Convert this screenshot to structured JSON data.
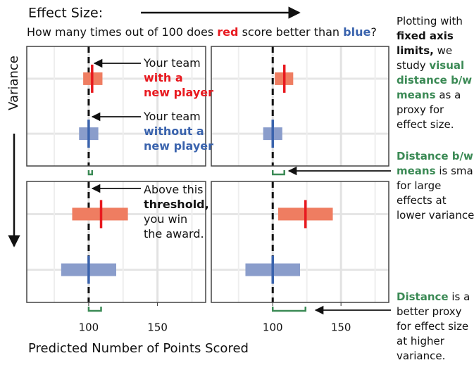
{
  "header": {
    "title": "Effect Size:",
    "question": [
      {
        "text": "How many times out of 100 does "
      },
      {
        "text": "red",
        "style": "red"
      },
      {
        "text": " score better than "
      },
      {
        "text": "blue",
        "style": "blue"
      },
      {
        "text": "?"
      }
    ]
  },
  "y_label": "Variance",
  "x_label": "Predicted Number of Points Scored",
  "panel_notes": [
    {
      "lines": [
        [
          {
            "text": "Your team"
          }
        ],
        [
          {
            "text": "with a",
            "style": "red"
          }
        ],
        [
          {
            "text": "new player",
            "style": "red"
          }
        ]
      ]
    },
    {
      "lines": [
        [
          {
            "text": "Your team"
          }
        ],
        [
          {
            "text": "without a",
            "style": "blue"
          }
        ],
        [
          {
            "text": "new player",
            "style": "blue"
          }
        ]
      ]
    },
    {
      "lines": [
        [
          {
            "text": "Above this"
          }
        ],
        [
          {
            "text": "threshold,",
            "style": "bold"
          }
        ],
        [
          {
            "text": "you win"
          }
        ],
        [
          {
            "text": "the award."
          }
        ]
      ]
    }
  ],
  "side_notes": [
    {
      "lines": [
        [
          {
            "text": "Plotting with"
          }
        ],
        [
          {
            "text": "fixed axis",
            "style": "bold"
          }
        ],
        [
          {
            "text": "limits,",
            "style": "bold"
          },
          {
            "text": " we"
          }
        ],
        [
          {
            "text": "study "
          },
          {
            "text": "visual",
            "style": "green"
          }
        ],
        [
          {
            "text": "distance b/w",
            "style": "green"
          }
        ],
        [
          {
            "text": "means",
            "style": "green"
          },
          {
            "text": " as a"
          }
        ],
        [
          {
            "text": "proxy for"
          }
        ],
        [
          {
            "text": "effect size."
          }
        ]
      ]
    },
    {
      "lines": [
        [
          {
            "text": "Distance b/w",
            "style": "green"
          }
        ],
        [
          {
            "text": "means",
            "style": "green"
          },
          {
            "text": " is small"
          }
        ],
        [
          {
            "text": "for large"
          }
        ],
        [
          {
            "text": "effects at"
          }
        ],
        [
          {
            "text": "lower variance."
          }
        ]
      ]
    },
    {
      "lines": [
        [
          {
            "text": "Distance",
            "style": "green"
          },
          {
            "text": " is a"
          }
        ],
        [
          {
            "text": "better proxy"
          }
        ],
        [
          {
            "text": "for effect size"
          }
        ],
        [
          {
            "text": "at higher"
          }
        ],
        [
          {
            "text": "variance."
          }
        ]
      ]
    }
  ],
  "chart_data": [
    {
      "type": "interval",
      "xlim": [
        55,
        185
      ],
      "xticks": [
        100,
        150
      ],
      "minor_grid": [
        75,
        125,
        175
      ],
      "show_tick_labels": false,
      "threshold": 100,
      "series": [
        {
          "color": "#ef7d61",
          "mean_color": "#e8191f",
          "low": 96,
          "high": 110,
          "mean": 102.5
        },
        {
          "color": "#8a9dcb",
          "mean_color": "#3a63ad",
          "low": 93,
          "high": 107,
          "mean": 100
        }
      ]
    },
    {
      "type": "interval",
      "xlim": [
        55,
        185
      ],
      "xticks": [
        100,
        150
      ],
      "minor_grid": [
        75,
        125,
        175
      ],
      "show_tick_labels": false,
      "threshold": 100,
      "series": [
        {
          "color": "#ef7d61",
          "mean_color": "#e8191f",
          "low": 101.5,
          "high": 115,
          "mean": 108.5
        },
        {
          "color": "#8a9dcb",
          "mean_color": "#3a63ad",
          "low": 93,
          "high": 107,
          "mean": 100
        }
      ]
    },
    {
      "type": "interval",
      "xlim": [
        55,
        185
      ],
      "xticks": [
        100,
        150
      ],
      "minor_grid": [
        75,
        125,
        175
      ],
      "show_tick_labels": true,
      "threshold": 100,
      "series": [
        {
          "color": "#ef7d61",
          "mean_color": "#e8191f",
          "low": 88,
          "high": 128.5,
          "mean": 109
        },
        {
          "color": "#8a9dcb",
          "mean_color": "#3a63ad",
          "low": 80,
          "high": 120,
          "mean": 100
        }
      ]
    },
    {
      "type": "interval",
      "xlim": [
        55,
        185
      ],
      "xticks": [
        100,
        150
      ],
      "minor_grid": [
        75,
        125,
        175
      ],
      "show_tick_labels": true,
      "threshold": 100,
      "series": [
        {
          "color": "#ef7d61",
          "mean_color": "#e8191f",
          "low": 104,
          "high": 144,
          "mean": 124
        },
        {
          "color": "#8a9dcb",
          "mean_color": "#3a63ad",
          "low": 80,
          "high": 120,
          "mean": 100
        }
      ]
    }
  ]
}
